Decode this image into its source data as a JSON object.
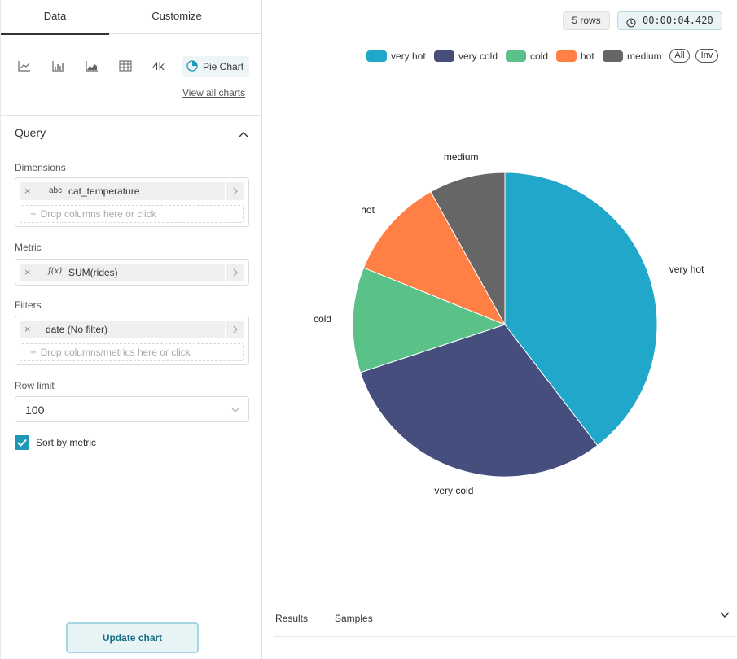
{
  "tabs": {
    "data": "Data",
    "customize": "Customize"
  },
  "viz": {
    "icons": [
      "line-chart-icon",
      "bar-chart-icon",
      "area-chart-icon",
      "table-icon"
    ],
    "big_number": "4k",
    "selected": "Pie Chart",
    "view_all": "View all charts"
  },
  "query": {
    "title": "Query",
    "dimensions_label": "Dimensions",
    "dimension": {
      "type": "abc",
      "name": "cat_temperature"
    },
    "dimension_drop": "Drop columns here or click",
    "metric_label": "Metric",
    "metric": {
      "type": "f(x)",
      "name": "SUM(rides)"
    },
    "filters_label": "Filters",
    "filter": {
      "name": "date (No filter)"
    },
    "filter_drop": "Drop columns/metrics here or click",
    "row_limit_label": "Row limit",
    "row_limit": "100",
    "sort_label": "Sort by metric",
    "sort_checked": true,
    "update_button": "Update chart"
  },
  "status": {
    "rows": "5 rows",
    "timer": "00:00:04.420"
  },
  "legend": {
    "items": [
      {
        "label": "very hot",
        "color": "#20a7c9"
      },
      {
        "label": "very cold",
        "color": "#454e7c"
      },
      {
        "label": "cold",
        "color": "#5ac189"
      },
      {
        "label": "hot",
        "color": "#ff7f44"
      },
      {
        "label": "medium",
        "color": "#666666"
      }
    ],
    "all": "All",
    "inv": "Inv"
  },
  "chart_data": {
    "type": "pie",
    "categories": [
      "very hot",
      "very cold",
      "cold",
      "hot",
      "medium"
    ],
    "values": [
      39.6,
      30.3,
      11.2,
      10.8,
      8.1
    ],
    "colors": [
      "#20a7c9",
      "#454e7c",
      "#5ac189",
      "#ff7f44",
      "#666666"
    ]
  },
  "bottom": {
    "results": "Results",
    "samples": "Samples"
  }
}
